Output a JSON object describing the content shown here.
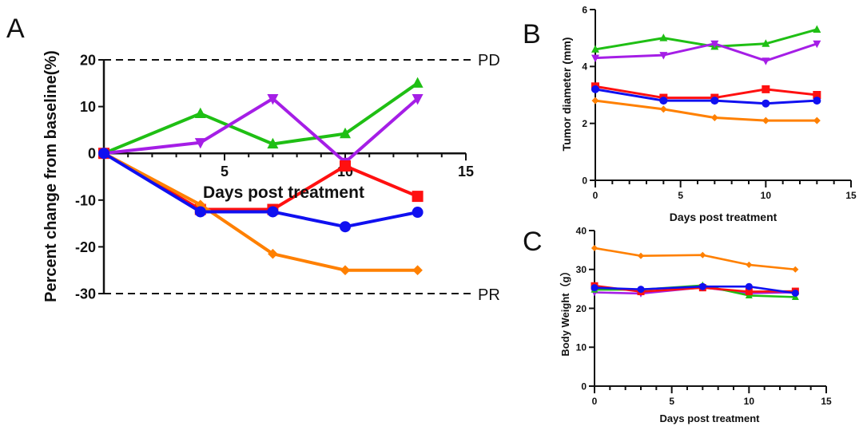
{
  "figure": {
    "panels": [
      "A",
      "B",
      "C"
    ]
  },
  "colors": {
    "green": "#1fbf14",
    "purple": "#a51ee6",
    "red": "#ff1010",
    "blue": "#1010f0",
    "orange": "#ff8000",
    "axis": "#111111"
  },
  "chart_data": [
    {
      "panel": "A",
      "type": "line",
      "title": "",
      "xlabel": "Days post treatment",
      "ylabel": "Percent change from baseline(%)",
      "xlim": [
        0,
        15
      ],
      "ylim": [
        -30,
        20
      ],
      "xticks": [
        5,
        10,
        15
      ],
      "yticks": [
        20,
        10,
        0,
        -10,
        -20,
        -30
      ],
      "reference_lines": [
        {
          "y": 20,
          "label": "PD",
          "style": "dashed"
        },
        {
          "y": -30,
          "label": "PR",
          "style": "dashed"
        }
      ],
      "x": [
        0,
        4,
        7,
        10,
        13
      ],
      "series": [
        {
          "name": "green",
          "marker": "triangle-up",
          "color": "#1fbf14",
          "values": [
            0,
            8.5,
            2.0,
            4.2,
            15.0
          ]
        },
        {
          "name": "purple",
          "marker": "triangle-down",
          "color": "#a51ee6",
          "values": [
            0,
            2.3,
            11.7,
            -1.9,
            11.7
          ]
        },
        {
          "name": "red",
          "marker": "square",
          "color": "#ff1010",
          "values": [
            0,
            -12.0,
            -12.0,
            -2.7,
            -9.2
          ]
        },
        {
          "name": "orange",
          "marker": "diamond",
          "color": "#ff8000",
          "values": [
            0,
            -11.0,
            -21.5,
            -25.0,
            -25.0
          ]
        },
        {
          "name": "blue",
          "marker": "circle",
          "color": "#1010f0",
          "values": [
            0,
            -12.5,
            -12.5,
            -15.7,
            -12.6
          ]
        }
      ],
      "grid": false,
      "legend": "none"
    },
    {
      "panel": "B",
      "type": "line",
      "title": "",
      "xlabel": "Days post treatment",
      "ylabel": "Tumor diameter (mm)",
      "xlim": [
        0,
        15
      ],
      "ylim": [
        0,
        6
      ],
      "xticks": [
        0,
        5,
        10,
        15
      ],
      "yticks": [
        0,
        2,
        4,
        6
      ],
      "x": [
        0,
        4,
        7,
        10,
        13
      ],
      "series": [
        {
          "name": "green",
          "marker": "triangle-up",
          "color": "#1fbf14",
          "values": [
            4.6,
            5.0,
            4.7,
            4.8,
            5.3
          ]
        },
        {
          "name": "purple",
          "marker": "triangle-down",
          "color": "#a51ee6",
          "values": [
            4.3,
            4.4,
            4.8,
            4.2,
            4.8
          ]
        },
        {
          "name": "red",
          "marker": "square",
          "color": "#ff1010",
          "values": [
            3.3,
            2.9,
            2.9,
            3.2,
            3.0
          ]
        },
        {
          "name": "blue",
          "marker": "circle",
          "color": "#1010f0",
          "values": [
            3.2,
            2.8,
            2.8,
            2.7,
            2.8
          ]
        },
        {
          "name": "orange",
          "marker": "diamond",
          "color": "#ff8000",
          "values": [
            2.8,
            2.5,
            2.2,
            2.1,
            2.1
          ]
        }
      ],
      "grid": false,
      "legend": "none"
    },
    {
      "panel": "C",
      "type": "line",
      "title": "",
      "xlabel": "Days post treatment",
      "ylabel": "Body Weight（g）",
      "xlim": [
        0,
        15
      ],
      "ylim": [
        0,
        40
      ],
      "xticks": [
        0,
        5,
        10,
        15
      ],
      "yticks": [
        0,
        10,
        20,
        30,
        40
      ],
      "x": [
        0,
        3,
        7,
        10,
        13
      ],
      "series": [
        {
          "name": "orange",
          "marker": "diamond",
          "color": "#ff8000",
          "values": [
            35.5,
            33.5,
            33.7,
            31.2,
            30.0
          ]
        },
        {
          "name": "purple",
          "marker": "triangle-down",
          "color": "#a51ee6",
          "values": [
            24.1,
            23.8,
            25.4,
            23.9,
            24.1
          ]
        },
        {
          "name": "green",
          "marker": "triangle-up",
          "color": "#1fbf14",
          "values": [
            24.8,
            24.8,
            25.9,
            23.3,
            22.9
          ]
        },
        {
          "name": "red",
          "marker": "square",
          "color": "#ff1010",
          "values": [
            25.8,
            24.3,
            25.3,
            24.3,
            24.4
          ]
        },
        {
          "name": "blue",
          "marker": "circle",
          "color": "#1010f0",
          "values": [
            25.3,
            24.9,
            25.6,
            25.6,
            23.9
          ]
        }
      ],
      "grid": false,
      "legend": "none"
    }
  ]
}
